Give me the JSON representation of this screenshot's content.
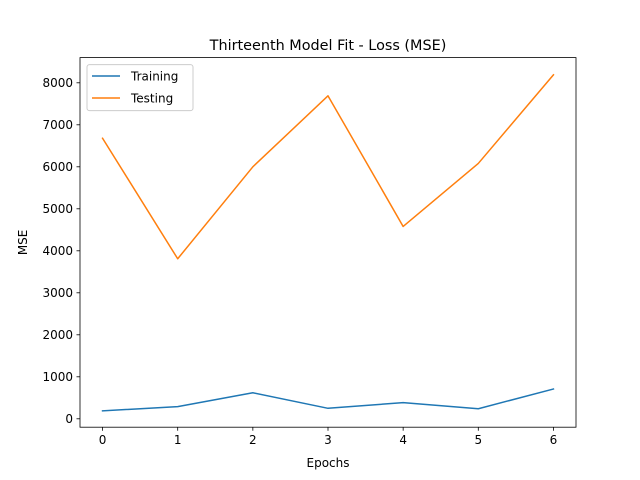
{
  "chart_data": {
    "type": "line",
    "title": "Thirteenth Model Fit - Loss (MSE)",
    "xlabel": "Epochs",
    "ylabel": "MSE",
    "x": [
      0,
      1,
      2,
      3,
      4,
      5,
      6
    ],
    "xlim": [
      -0.3,
      6.3
    ],
    "ylim": [
      -200,
      8600
    ],
    "xticks": [
      0,
      1,
      2,
      3,
      4,
      5,
      6
    ],
    "yticks": [
      0,
      1000,
      2000,
      3000,
      4000,
      5000,
      6000,
      7000,
      8000
    ],
    "grid": false,
    "legend_position": "top-left",
    "series": [
      {
        "name": "Training",
        "color": "#1f77b4",
        "values": [
          190,
          290,
          620,
          250,
          385,
          240,
          710
        ]
      },
      {
        "name": "Testing",
        "color": "#ff7f0e",
        "values": [
          6680,
          3810,
          6000,
          7690,
          4580,
          6080,
          8190
        ]
      }
    ]
  }
}
